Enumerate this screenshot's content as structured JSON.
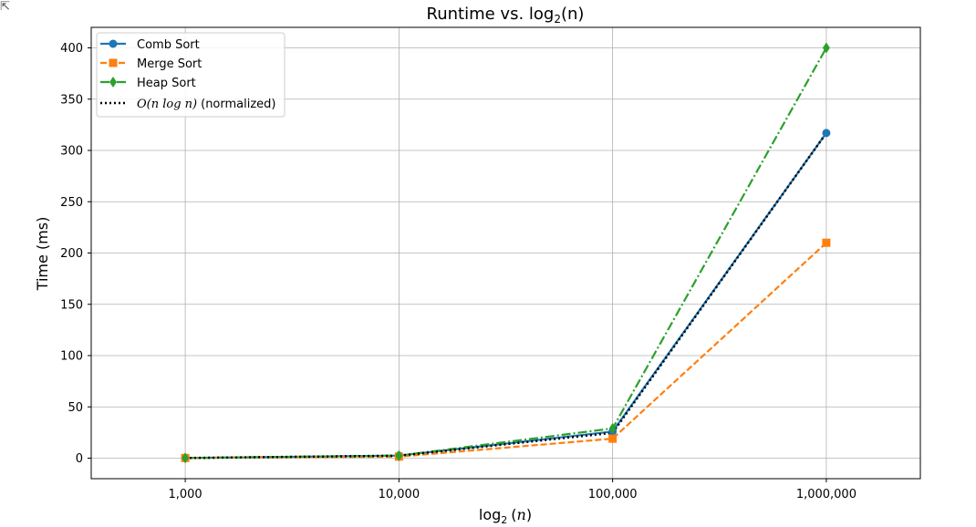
{
  "corner_icon": "output-collapse-icon",
  "chart_data": {
    "type": "line",
    "title_main": "Runtime vs. log",
    "title_sub": "2",
    "title_tail": "(n)",
    "xlabel_main": "log",
    "xlabel_sub": "2",
    "xlabel_var": "n",
    "ylabel": "Time (ms)",
    "x_scale": "log",
    "x": [
      1000,
      10000,
      100000,
      1000000
    ],
    "x_tick_labels": [
      "1,000",
      "10,000",
      "100,000",
      "1,000,000"
    ],
    "ylim": [
      -20,
      420
    ],
    "y_ticks": [
      0,
      50,
      100,
      150,
      200,
      250,
      300,
      350,
      400
    ],
    "grid": true,
    "legend_position": "top-left",
    "series": [
      {
        "name": "Comb Sort",
        "values": [
          0.2,
          2.5,
          26,
          317
        ],
        "color": "#1f77b4",
        "marker": "circle",
        "dash": "solid"
      },
      {
        "name": "Merge Sort",
        "values": [
          0.2,
          1.5,
          19,
          210
        ],
        "color": "#ff7f0e",
        "marker": "square",
        "dash": "dashed"
      },
      {
        "name": "Heap Sort",
        "values": [
          0.2,
          2.5,
          29,
          400
        ],
        "color": "#2ca02c",
        "marker": "diamond",
        "dash": "dashdot"
      },
      {
        "name_math": "O(n log n)",
        "name_tail": "(normalized)",
        "values": [
          0.2,
          2.4,
          24.7,
          317
        ],
        "color": "#000000",
        "marker": "none",
        "dash": "dotted"
      }
    ]
  }
}
